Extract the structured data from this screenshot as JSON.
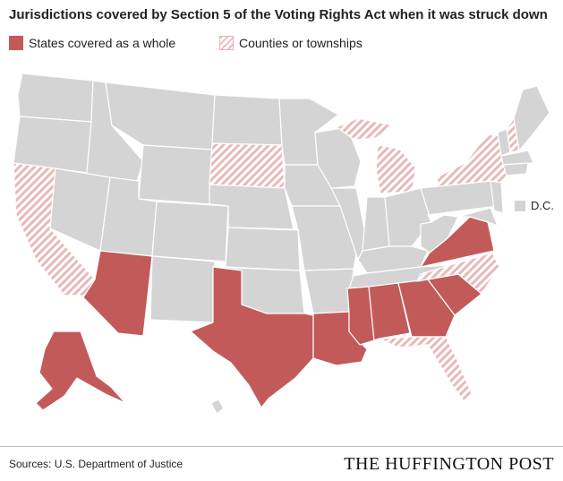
{
  "title": "Jurisdictions covered by Section 5 of the Voting Rights Act when it was struck down",
  "legend": {
    "whole": "States covered as a whole",
    "partial": "Counties or townships",
    "dc": "D.C."
  },
  "colors": {
    "base": "#d4d4d4",
    "covered": "#c25a5a",
    "partial_hatch": "#e8b9b9",
    "border": "#ffffff"
  },
  "covered_states": [
    "Alaska",
    "Arizona",
    "Texas",
    "Louisiana",
    "Mississippi",
    "Alabama",
    "Georgia",
    "South Carolina",
    "Virginia"
  ],
  "partial_states": [
    "California",
    "South Dakota",
    "Michigan",
    "New York",
    "North Carolina",
    "Florida",
    "New Hampshire"
  ],
  "source": "Sources: U.S. Department of Justice",
  "brand": "THE HUFFINGTON POST"
}
